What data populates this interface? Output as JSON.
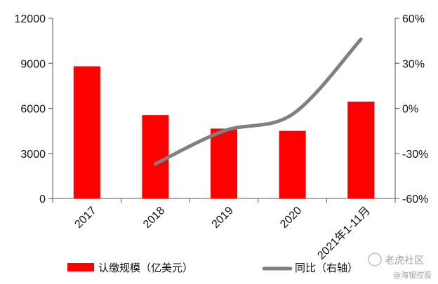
{
  "chart_data": {
    "type": "bar",
    "categories": [
      "2017",
      "2018",
      "2019",
      "2020",
      "2021年1-11月"
    ],
    "series": [
      {
        "name": "认缴规模（亿美元）",
        "type": "bar",
        "axis": "left",
        "values": [
          8800,
          5550,
          4650,
          4500,
          6450
        ],
        "color": "#ff0000"
      },
      {
        "name": "同比（右轴）",
        "type": "line",
        "axis": "right",
        "values": [
          null,
          -37,
          -15,
          -4,
          46
        ],
        "color": "#808080"
      }
    ],
    "y_left": {
      "ylim": [
        0,
        12000
      ],
      "ticks": [
        "0",
        "3000",
        "6000",
        "9000",
        "12000"
      ]
    },
    "y_right": {
      "ylim": [
        -60,
        60
      ],
      "ticks": [
        "-60%",
        "-30%",
        "0%",
        "30%",
        "60%"
      ]
    },
    "grid": false,
    "legend": "bottom"
  },
  "watermark": {
    "brand": "老虎社区",
    "source": "@海银控股"
  }
}
